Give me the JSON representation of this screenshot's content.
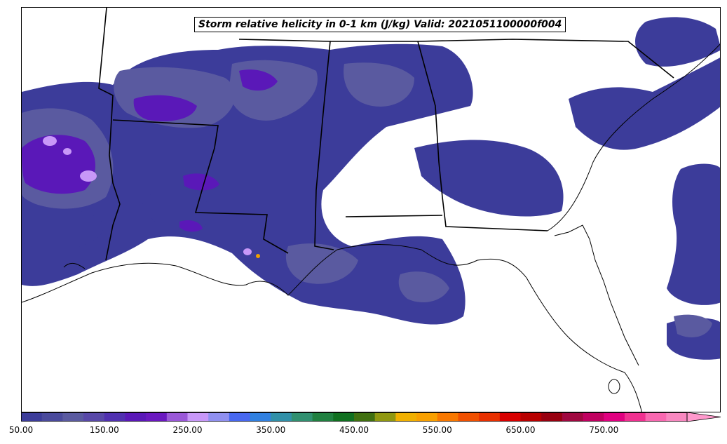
{
  "title": "Storm relative helicity in 0-1 km (J/kg) Valid: 2021051100000f004",
  "colorbar": {
    "min": 50,
    "max": 850,
    "step": 25,
    "extend": "max",
    "extend_color": "#ff99cc",
    "colors": [
      "#3c3c9a",
      "#4a4a9c",
      "#5a5aa0",
      "#5848a8",
      "#5030b0",
      "#5a18b8",
      "#6a18c0",
      "#9a58d8",
      "#c898f8",
      "#9090f0",
      "#4868f0",
      "#3080e0",
      "#3090a8",
      "#309070",
      "#208040",
      "#107020",
      "#407010",
      "#909810",
      "#f0b000",
      "#f8a000",
      "#f87800",
      "#f05000",
      "#e83000",
      "#d80000",
      "#b80000",
      "#980010",
      "#a00840",
      "#c00060",
      "#e00080",
      "#f03090",
      "#f868b0",
      "#f888c0"
    ],
    "tick_labels": [
      "50.00",
      "150.00",
      "250.00",
      "350.00",
      "450.00",
      "550.00",
      "650.00",
      "750.00"
    ],
    "tick_values": [
      50,
      150,
      250,
      350,
      450,
      550,
      650,
      750
    ]
  },
  "map": {
    "region": "Southeastern United States",
    "field_colors": {
      "low": "#3c3c9a",
      "mid": "#5a5aa0",
      "high": "#5a18b8",
      "peak": "#c898f8",
      "spot": "#f0a000"
    },
    "border_color": "#000000",
    "background": "#ffffff"
  }
}
